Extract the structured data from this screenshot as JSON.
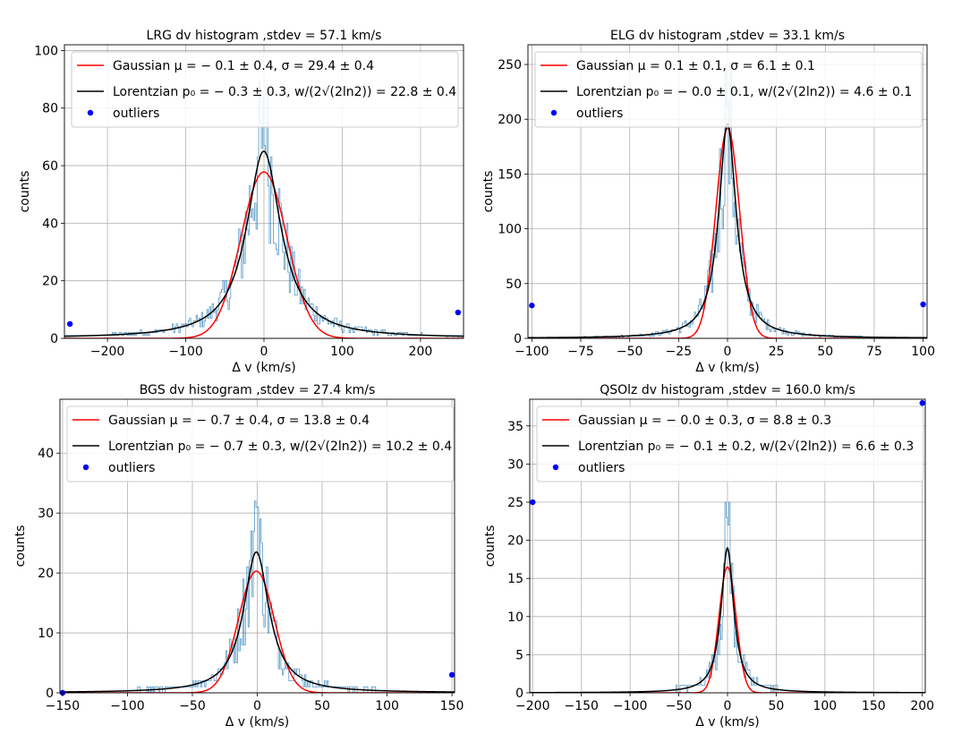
{
  "chart_data": [
    {
      "type": "histogram",
      "title": "LRG dv histogram ,stdev = 57.1 km/s",
      "xlabel": "Δ v (km/s)",
      "ylabel": "counts",
      "xlim": [
        -255,
        255
      ],
      "ylim": [
        0,
        102
      ],
      "xticks": [
        -200,
        -100,
        0,
        100,
        200
      ],
      "yticks": [
        0,
        20,
        40,
        60,
        80,
        100
      ],
      "grid": true,
      "legend_position": "top-left",
      "legend": [
        {
          "label": "Gaussian μ = − 0.1 ± 0.4, σ = 29.4 ± 0.4",
          "color": "#ff0000",
          "kind": "line"
        },
        {
          "label": "Lorentzian p₀ = − 0.3 ± 0.3, w/(2√(2ln2)) = 22.8 ± 0.4",
          "color": "#000000",
          "kind": "line"
        },
        {
          "label": "outliers",
          "color": "#0000ff",
          "kind": "marker"
        }
      ],
      "gaussian": {
        "amplitude": 57.8,
        "mu": -0.1,
        "sigma": 29.4
      },
      "lorentzian": {
        "amplitude": 65.0,
        "p0": -0.3,
        "hwhm": 26.8
      },
      "outliers": {
        "x": [
          -248,
          248
        ],
        "y": [
          5,
          9
        ]
      },
      "hist_color": "#1f77b4",
      "hist_peak": 73
    },
    {
      "type": "histogram",
      "title": "ELG dv histogram ,stdev = 33.1 km/s",
      "xlabel": "Δ v (km/s)",
      "ylabel": "counts",
      "xlim": [
        -102,
        102
      ],
      "ylim": [
        0,
        268
      ],
      "xticks": [
        -100,
        -75,
        -50,
        -25,
        0,
        25,
        50,
        75,
        100
      ],
      "yticks": [
        0,
        50,
        100,
        150,
        200,
        250
      ],
      "grid": true,
      "legend_position": "top-left",
      "legend": [
        {
          "label": "Gaussian μ = 0.1 ± 0.1, σ = 6.1 ± 0.1",
          "color": "#ff0000",
          "kind": "line"
        },
        {
          "label": "Lorentzian p₀ = − 0.0 ± 0.1, w/(2√(2ln2)) = 4.6 ± 0.1",
          "color": "#000000",
          "kind": "line"
        },
        {
          "label": "outliers",
          "color": "#0000ff",
          "kind": "marker"
        }
      ],
      "gaussian": {
        "amplitude": 192,
        "mu": 0.1,
        "sigma": 6.1
      },
      "lorentzian": {
        "amplitude": 196,
        "p0": 0.0,
        "hwhm": 5.4
      },
      "outliers": {
        "x": [
          -100,
          100
        ],
        "y": [
          30,
          31
        ]
      },
      "hist_color": "#1f77b4",
      "hist_peak": 220
    },
    {
      "type": "histogram",
      "title": "BGS dv histogram ,stdev = 27.4 km/s",
      "xlabel": "Δ v (km/s)",
      "ylabel": "counts",
      "xlim": [
        -152,
        152
      ],
      "ylim": [
        0,
        49
      ],
      "xticks": [
        -150,
        -100,
        -50,
        0,
        50,
        100,
        150
      ],
      "yticks": [
        0,
        10,
        20,
        30,
        40
      ],
      "grid": true,
      "legend_position": "top-left",
      "legend": [
        {
          "label": "Gaussian μ = − 0.7 ± 0.4, σ = 13.8 ± 0.4",
          "color": "#ff0000",
          "kind": "line"
        },
        {
          "label": "Lorentzian p₀ = − 0.7 ± 0.3, w/(2√(2ln2)) = 10.2 ± 0.4",
          "color": "#000000",
          "kind": "line"
        },
        {
          "label": "outliers",
          "color": "#0000ff",
          "kind": "marker"
        }
      ],
      "gaussian": {
        "amplitude": 20.3,
        "mu": -0.7,
        "sigma": 13.8
      },
      "lorentzian": {
        "amplitude": 23.5,
        "p0": -0.7,
        "hwhm": 12.0
      },
      "outliers": {
        "x": [
          -150,
          150
        ],
        "y": [
          0,
          3
        ]
      },
      "hist_color": "#1f77b4",
      "hist_peak": 33
    },
    {
      "type": "histogram",
      "title": "QSOlz dv histogram ,stdev = 160.0 km/s",
      "xlabel": "Δ v (km/s)",
      "ylabel": "counts",
      "xlim": [
        -203,
        203
      ],
      "ylim": [
        0,
        38.5
      ],
      "xticks": [
        -200,
        -150,
        -100,
        -50,
        0,
        50,
        100,
        150,
        200
      ],
      "yticks": [
        0,
        5,
        10,
        15,
        20,
        25,
        30,
        35
      ],
      "grid": true,
      "legend_position": "top-left",
      "legend": [
        {
          "label": "Gaussian μ = − 0.0 ± 0.3, σ = 8.8 ± 0.3",
          "color": "#ff0000",
          "kind": "line"
        },
        {
          "label": "Lorentzian p₀ = − 0.1 ± 0.2, w/(2√(2ln2)) = 6.6 ± 0.3",
          "color": "#000000",
          "kind": "line"
        },
        {
          "label": "outliers",
          "color": "#0000ff",
          "kind": "marker"
        }
      ],
      "gaussian": {
        "amplitude": 16.5,
        "mu": 0.0,
        "sigma": 8.8
      },
      "lorentzian": {
        "amplitude": 19.0,
        "p0": -0.1,
        "hwhm": 7.8
      },
      "outliers": {
        "x": [
          -200,
          200
        ],
        "y": [
          25,
          38
        ]
      },
      "hist_color": "#1f77b4",
      "hist_peak": 26
    }
  ]
}
